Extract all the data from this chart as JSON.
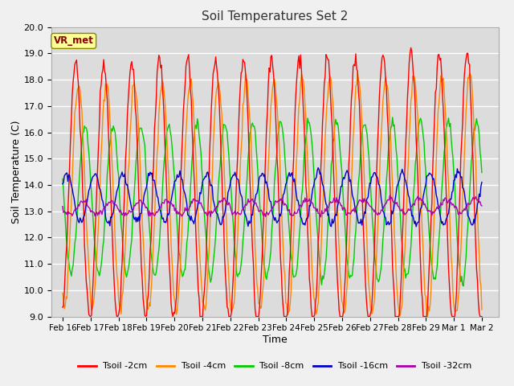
{
  "title": "Soil Temperatures Set 2",
  "xlabel": "Time",
  "ylabel": "Soil Temperature (C)",
  "ylim": [
    9.0,
    20.0
  ],
  "yticks": [
    9.0,
    10.0,
    11.0,
    12.0,
    13.0,
    14.0,
    15.0,
    16.0,
    17.0,
    18.0,
    19.0,
    20.0
  ],
  "xtick_labels": [
    "Feb 16",
    "Feb 17",
    "Feb 18",
    "Feb 19",
    "Feb 20",
    "Feb 21",
    "Feb 22",
    "Feb 23",
    "Feb 24",
    "Feb 25",
    "Feb 26",
    "Feb 27",
    "Feb 28",
    "Feb 29",
    "Mar 1",
    "Mar 2"
  ],
  "legend_label": "VR_met",
  "series_labels": [
    "Tsoil -2cm",
    "Tsoil -4cm",
    "Tsoil -8cm",
    "Tsoil -16cm",
    "Tsoil -32cm"
  ],
  "series_colors": [
    "#ff0000",
    "#ff8800",
    "#00cc00",
    "#0000cc",
    "#aa00aa"
  ],
  "fig_facecolor": "#f0f0f0",
  "ax_facecolor": "#dcdcdc",
  "grid_color": "#ffffff",
  "n_points": 480
}
